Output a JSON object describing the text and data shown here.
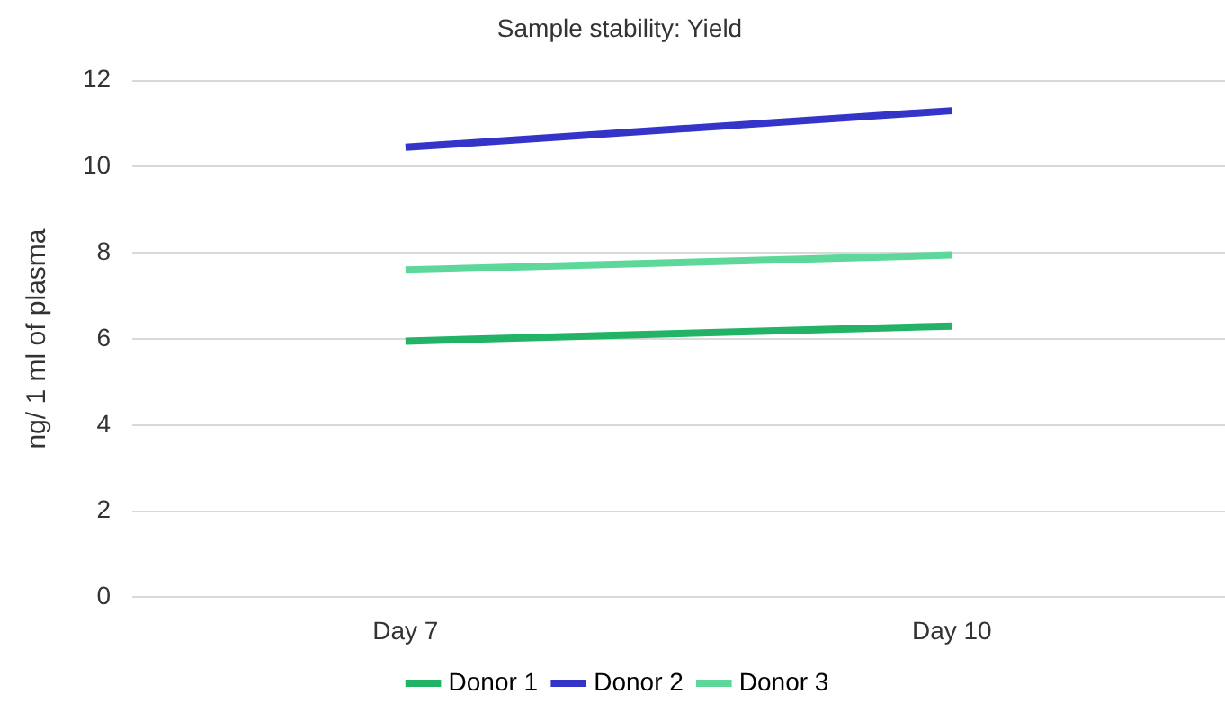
{
  "chart_data": {
    "type": "line",
    "title": "Sample stability: Yield",
    "ylabel": "ng/ 1 ml of plasma",
    "categories": [
      "Day 7",
      "Day 10"
    ],
    "series": [
      {
        "name": "Donor 1",
        "color": "#22b366",
        "values": [
          5.95,
          6.3
        ]
      },
      {
        "name": "Donor 2",
        "color": "#3434c8",
        "values": [
          10.45,
          11.3
        ]
      },
      {
        "name": "Donor 3",
        "color": "#5ed89a",
        "values": [
          7.6,
          7.95
        ]
      }
    ],
    "ylim": [
      0,
      12
    ],
    "yticks": [
      0,
      2,
      4,
      6,
      8,
      10,
      12
    ],
    "grid": "y",
    "legend": "bottom",
    "marker": "none",
    "line_style": "solid"
  }
}
